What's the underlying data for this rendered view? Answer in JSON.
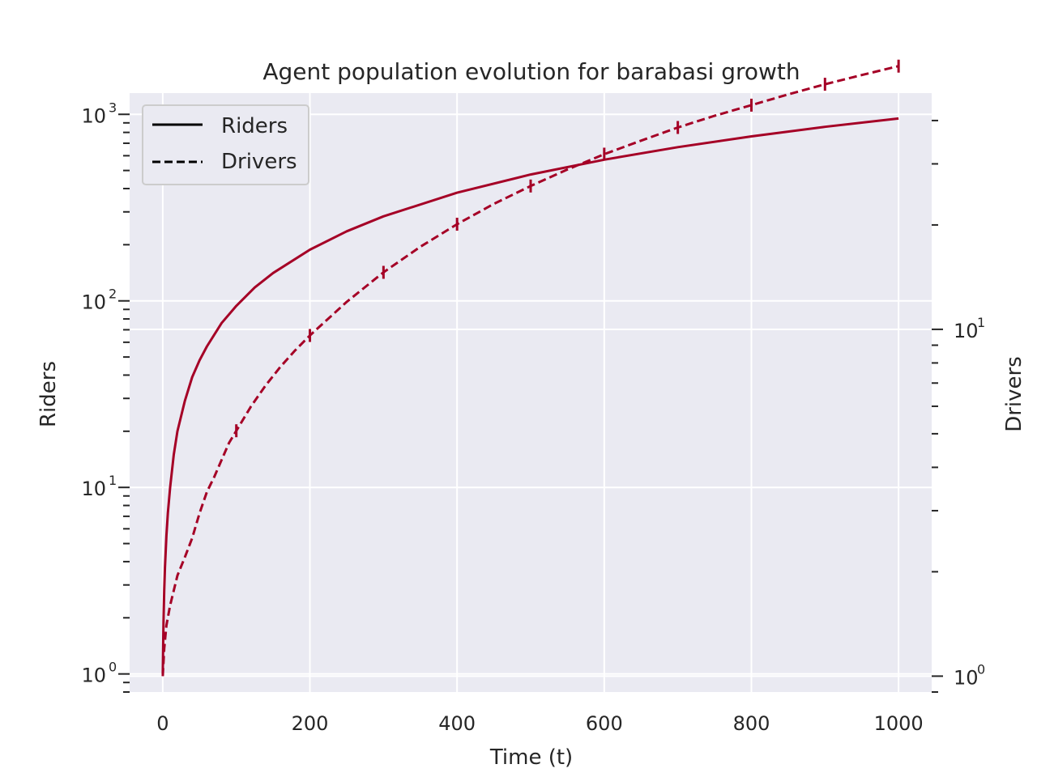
{
  "chart_data": {
    "type": "line",
    "title": "Agent population evolution for barabasi growth",
    "xlabel": "Time (t)",
    "ylabel_left": "Riders",
    "ylabel_right": "Drivers",
    "xlim": [
      -45,
      1045
    ],
    "x_ticks": [
      0,
      200,
      400,
      600,
      800,
      1000
    ],
    "x_tick_labels": [
      "0",
      "200",
      "400",
      "600",
      "800",
      "1000"
    ],
    "y_left_scale": "log",
    "y_left_lim": [
      0.8,
      1300
    ],
    "y_left_ticks": [
      1,
      10,
      100,
      1000
    ],
    "y_left_tick_labels": [
      {
        "base": "10",
        "exp": "0"
      },
      {
        "base": "10",
        "exp": "1"
      },
      {
        "base": "10",
        "exp": "2"
      },
      {
        "base": "10",
        "exp": "3"
      }
    ],
    "y_right_scale": "log",
    "y_right_lim": [
      0.9,
      48
    ],
    "y_right_ticks": [
      1,
      10
    ],
    "y_right_tick_labels": [
      {
        "base": "10",
        "exp": "0"
      },
      {
        "base": "10",
        "exp": "1"
      }
    ],
    "grid": true,
    "legend": {
      "position": "top-left",
      "entries": [
        {
          "label": "Riders",
          "style": "solid"
        },
        {
          "label": "Drivers",
          "style": "dashed"
        }
      ]
    },
    "colors": {
      "line": "#a50026",
      "plot_background": "#eaeaf2",
      "grid": "#ffffff",
      "text": "#262626"
    },
    "series": [
      {
        "name": "Riders",
        "axis": "left",
        "style": "solid",
        "x": [
          0,
          1,
          2,
          3,
          5,
          7,
          10,
          15,
          20,
          30,
          40,
          50,
          60,
          80,
          100,
          125,
          150,
          200,
          250,
          300,
          400,
          500,
          600,
          700,
          800,
          900,
          1000
        ],
        "y": [
          1,
          1.9,
          2.8,
          3.7,
          5.5,
          7.3,
          10,
          15,
          20,
          29,
          39,
          48,
          57,
          76,
          94,
          118,
          141,
          188,
          236,
          284,
          380,
          476,
          571,
          667,
          762,
          857,
          950
        ]
      },
      {
        "name": "Drivers",
        "axis": "right",
        "style": "dashed",
        "x": [
          0,
          2,
          5,
          10,
          20,
          30,
          40,
          50,
          60,
          70,
          80,
          90,
          100,
          120,
          140,
          160,
          180,
          200,
          250,
          300,
          350,
          400,
          450,
          500,
          550,
          600,
          650,
          700,
          750,
          800,
          850,
          900,
          950,
          1000
        ],
        "y": [
          1,
          1.2,
          1.4,
          1.6,
          1.95,
          2.2,
          2.5,
          2.95,
          3.4,
          3.75,
          4.2,
          4.7,
          5.1,
          6.0,
          6.9,
          7.8,
          8.7,
          9.6,
          12,
          14.6,
          17.3,
          20.1,
          23.0,
          25.9,
          28.9,
          32.0,
          35.0,
          38.2,
          41.3,
          44.3,
          47.6,
          50.9,
          54.1,
          57.4
        ]
      }
    ],
    "error_bars": {
      "series": "Drivers",
      "x": [
        100,
        200,
        300,
        400,
        500,
        600,
        700,
        800,
        900,
        1000
      ]
    }
  }
}
